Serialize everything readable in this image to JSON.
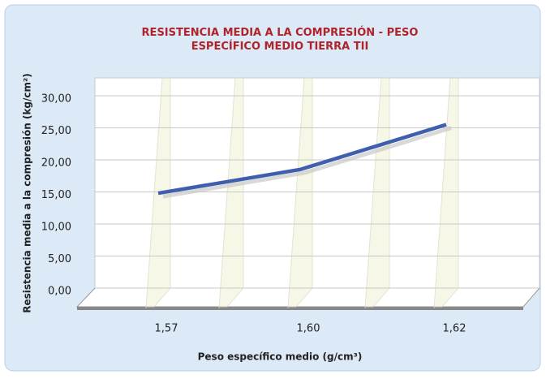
{
  "chart_data": {
    "type": "line",
    "title": "RESISTENCIA MEDIA A LA COMPRESIÓN - PESO ESPECÍFICO MEDIO TIERRA TII",
    "x_label": "Peso específico medio (g/cm³)",
    "y_label": "Resistencia media a la compresión  (kg/cm²)",
    "categories": [
      "1,57",
      "1,60",
      "1,62"
    ],
    "series": [
      {
        "name": "Resistencia media",
        "color": "#3f5fae",
        "values": [
          14.8,
          18.5,
          25.5
        ]
      }
    ],
    "ylim": [
      0,
      30
    ],
    "yticks": [
      {
        "value": 0,
        "label": "0,00"
      },
      {
        "value": 5,
        "label": "5,00"
      },
      {
        "value": 10,
        "label": "10,00"
      },
      {
        "value": 15,
        "label": "15,00"
      },
      {
        "value": 20,
        "label": "20,00"
      },
      {
        "value": 25,
        "label": "25,00"
      },
      {
        "value": 30,
        "label": "30,00"
      }
    ],
    "grid": true
  }
}
